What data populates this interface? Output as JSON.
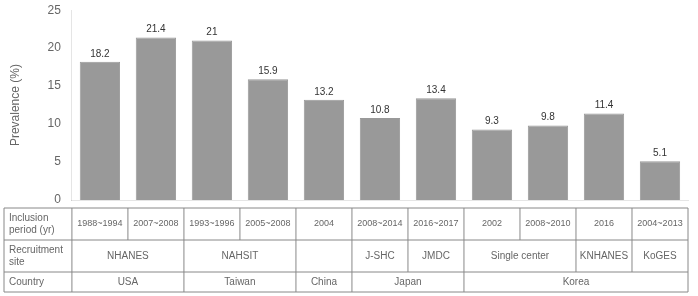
{
  "chart_data": {
    "type": "bar",
    "ylabel": "Prevalence (%)",
    "categories": [
      "1988~1994",
      "2007~2008",
      "1993~1996",
      "2005~2008",
      "2004",
      "2008~2014",
      "2016~2017",
      "2002",
      "2008~2010",
      "2016",
      "2004~2013"
    ],
    "values": [
      18.2,
      21.4,
      21.0,
      15.9,
      13.2,
      10.8,
      13.4,
      9.3,
      9.8,
      11.4,
      5.1
    ],
    "color": "#999999",
    "ylim": [
      0,
      25
    ],
    "yticks": [
      0,
      5,
      10,
      15,
      20,
      25
    ],
    "grid": false,
    "data_labels": true,
    "tick_labels": "y",
    "table": {
      "row_labels": [
        "Inclusion\nperiod (yr)",
        "Recruitment\nsite",
        "Country"
      ],
      "rows": [
        [
          "NHANES",
          "NHANES",
          "NAHSIT",
          "NAHSIT",
          null,
          "J-SHC",
          "JMDC",
          "Single center",
          "Single center",
          "KNHANES",
          "KoGES"
        ],
        [
          "USA",
          "USA",
          "Taiwan",
          "Taiwan",
          "China",
          "Japan",
          "Japan",
          "Korea",
          "Korea",
          "Korea",
          "Korea"
        ]
      ]
    }
  }
}
